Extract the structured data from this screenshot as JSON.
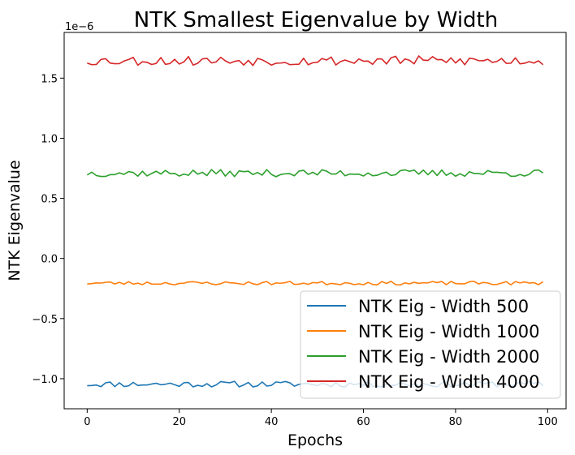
{
  "chart_data": {
    "type": "line",
    "title": "NTK Smallest Eigenvalue by Width",
    "xlabel": "Epochs",
    "ylabel": "NTK Eigenvalue",
    "y_scale_label": "1e−6",
    "xlim": [
      -5,
      104
    ],
    "ylim": [
      -1.25,
      1.88
    ],
    "xticks": [
      0,
      20,
      40,
      60,
      80,
      100
    ],
    "xtick_labels": [
      "0",
      "20",
      "40",
      "60",
      "80",
      "100"
    ],
    "yticks": [
      -1.0,
      -0.5,
      0.0,
      0.5,
      1.0,
      1.5
    ],
    "ytick_labels": [
      "−1.0",
      "−0.5",
      "0.0",
      "0.5",
      "1.0",
      "1.5"
    ],
    "legend_position": "lower-right",
    "series": [
      {
        "name": "NTK Eig - Width 500",
        "color": "#1f77b4",
        "base": -1.045,
        "amplitude": 0.025,
        "seed": 11
      },
      {
        "name": "NTK Eig - Width 1000",
        "color": "#ff7f0e",
        "base": -0.205,
        "amplitude": 0.015,
        "seed": 23
      },
      {
        "name": "NTK Eig - Width 2000",
        "color": "#2ca02c",
        "base": 0.71,
        "amplitude": 0.03,
        "seed": 37
      },
      {
        "name": "NTK Eig - Width 4000",
        "color": "#d62728",
        "base": 1.645,
        "amplitude": 0.04,
        "seed": 53
      }
    ],
    "epochs_count": 100
  }
}
